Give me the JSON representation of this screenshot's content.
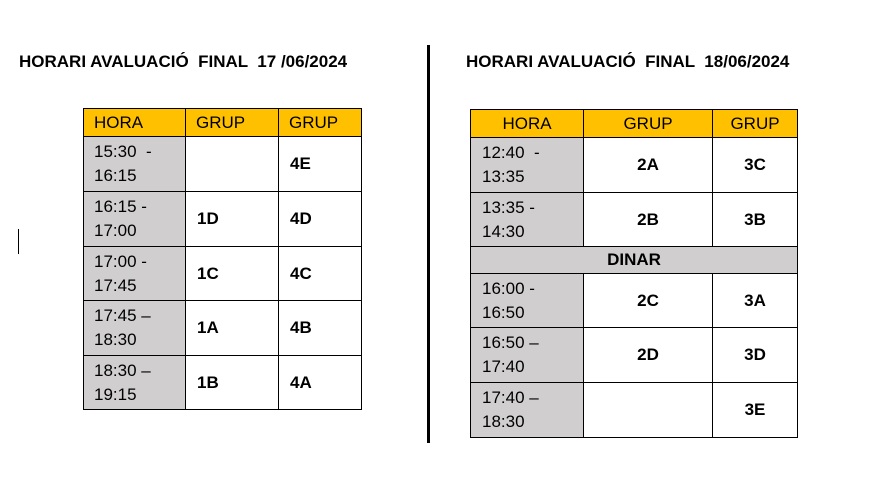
{
  "left": {
    "title": "HORARI AVALUACIÓ  FINAL  17 /06/2024",
    "headers": [
      "HORA",
      "GRUP",
      "GRUP"
    ],
    "rows": [
      {
        "time": "15:30  -\n16:15",
        "g1": "",
        "g2": "4E"
      },
      {
        "time": "16:15 -\n17:00",
        "g1": "1D",
        "g2": "4D"
      },
      {
        "time": "17:00 -\n17:45",
        "g1": "1C",
        "g2": "4C"
      },
      {
        "time": "17:45 –\n18:30",
        "g1": "1A",
        "g2": "4B"
      },
      {
        "time": "18:30 –\n19:15",
        "g1": "1B",
        "g2": "4A"
      }
    ]
  },
  "right": {
    "title": "HORARI AVALUACIÓ  FINAL  18/06/2024",
    "headers": [
      "HORA",
      "GRUP",
      "GRUP"
    ],
    "rows_before": [
      {
        "time": "12:40  -\n13:35",
        "g1": "2A",
        "g2": "3C"
      },
      {
        "time": "13:35 -\n14:30",
        "g1": "2B",
        "g2": "3B"
      }
    ],
    "break_label": "DINAR",
    "rows_after": [
      {
        "time": "16:00 -\n16:50",
        "g1": "2C",
        "g2": "3A"
      },
      {
        "time": "16:50 –\n17:40",
        "g1": "2D",
        "g2": "3D"
      },
      {
        "time": "17:40 –\n18:30",
        "g1": "",
        "g2": "3E"
      }
    ]
  },
  "colors": {
    "header": "#ffc000",
    "time_cell": "#d0cece"
  }
}
